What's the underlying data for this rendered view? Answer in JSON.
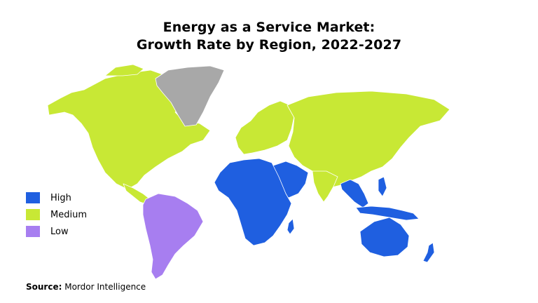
{
  "title": {
    "line1": "Energy as a Service Market:",
    "line2": "Growth Rate by Region, 2022-2027"
  },
  "legend": [
    {
      "label": "High",
      "color": "#1f5fe0"
    },
    {
      "label": "Medium",
      "color": "#c8e835"
    },
    {
      "label": "Low",
      "color": "#a77ef0"
    }
  ],
  "no_data_color": "#a8a8a8",
  "regions": [
    {
      "name": "North America",
      "level": "Medium"
    },
    {
      "name": "Greenland",
      "level": "No data"
    },
    {
      "name": "Europe",
      "level": "Medium"
    },
    {
      "name": "Russia and Central Asia",
      "level": "Medium"
    },
    {
      "name": "China and East Asia",
      "level": "Medium"
    },
    {
      "name": "India",
      "level": "Medium"
    },
    {
      "name": "Central America",
      "level": "Medium"
    },
    {
      "name": "South America",
      "level": "Low"
    },
    {
      "name": "Africa",
      "level": "High"
    },
    {
      "name": "Middle East",
      "level": "High"
    },
    {
      "name": "Southeast Asia",
      "level": "High"
    },
    {
      "name": "Oceania",
      "level": "High"
    }
  ],
  "source": {
    "label": "Source:",
    "text": " Mordor Intelligence"
  }
}
